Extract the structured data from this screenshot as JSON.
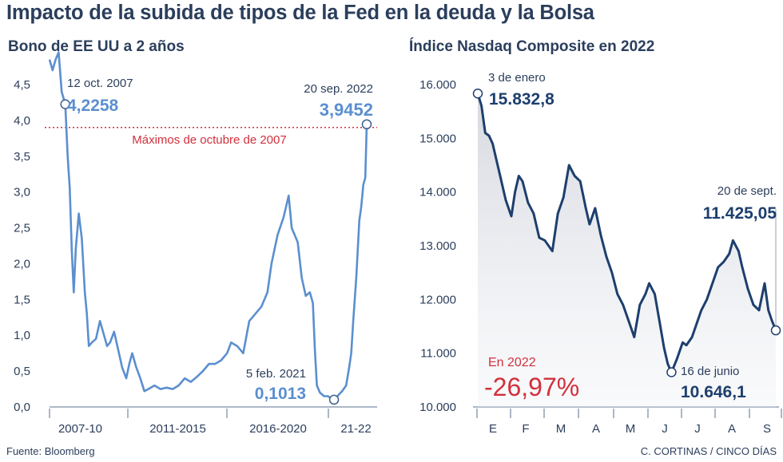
{
  "title": "Impacto de la subida de tipos de la Fed en la deuda y la Bolsa",
  "source": "Fuente: Bloomberg",
  "credit": "C. CORTINAS / CINCO DÍAS",
  "colors": {
    "bond_line": "#5b8fcf",
    "nasdaq_line": "#1d3f6e",
    "reference": "#d2303c",
    "axis_text": "#2b3e5c"
  },
  "chart_data": [
    {
      "type": "line",
      "title": "Bono de EE UU a 2 años",
      "xlabel": "",
      "ylabel": "",
      "ylim": [
        0,
        4.5
      ],
      "yticks": [
        "4,5",
        "4,0",
        "3,5",
        "3,0",
        "2,5",
        "2,0",
        "1,5",
        "1,0",
        "0,5",
        "0,0"
      ],
      "xtick_labels": [
        "2007-10",
        "2011-2015",
        "2016-2020",
        "21-22"
      ],
      "grid": false,
      "series": [
        {
          "values": [
            [
              2007.0,
              4.85
            ],
            [
              2007.15,
              4.7
            ],
            [
              2007.3,
              4.85
            ],
            [
              2007.45,
              4.95
            ],
            [
              2007.6,
              4.4
            ],
            [
              2007.78,
              4.2258
            ],
            [
              2007.9,
              3.5
            ],
            [
              2008.0,
              3.05
            ],
            [
              2008.1,
              2.2
            ],
            [
              2008.2,
              1.6
            ],
            [
              2008.3,
              2.2
            ],
            [
              2008.45,
              2.7
            ],
            [
              2008.6,
              2.35
            ],
            [
              2008.75,
              1.6
            ],
            [
              2008.85,
              1.3
            ],
            [
              2008.95,
              0.85
            ],
            [
              2009.1,
              0.9
            ],
            [
              2009.3,
              0.95
            ],
            [
              2009.5,
              1.2
            ],
            [
              2009.7,
              1.0
            ],
            [
              2009.85,
              0.85
            ],
            [
              2010.0,
              0.9
            ],
            [
              2010.2,
              1.05
            ],
            [
              2010.4,
              0.8
            ],
            [
              2010.6,
              0.55
            ],
            [
              2010.8,
              0.4
            ],
            [
              2010.95,
              0.6
            ],
            [
              2011.1,
              0.75
            ],
            [
              2011.3,
              0.55
            ],
            [
              2011.5,
              0.4
            ],
            [
              2011.7,
              0.22
            ],
            [
              2011.9,
              0.25
            ],
            [
              2012.2,
              0.3
            ],
            [
              2012.5,
              0.25
            ],
            [
              2012.8,
              0.27
            ],
            [
              2013.1,
              0.25
            ],
            [
              2013.4,
              0.3
            ],
            [
              2013.7,
              0.4
            ],
            [
              2014.0,
              0.35
            ],
            [
              2014.3,
              0.42
            ],
            [
              2014.6,
              0.5
            ],
            [
              2014.9,
              0.6
            ],
            [
              2015.2,
              0.6
            ],
            [
              2015.5,
              0.65
            ],
            [
              2015.8,
              0.75
            ],
            [
              2016.0,
              0.9
            ],
            [
              2016.3,
              0.85
            ],
            [
              2016.6,
              0.75
            ],
            [
              2016.9,
              1.2
            ],
            [
              2017.2,
              1.3
            ],
            [
              2017.5,
              1.4
            ],
            [
              2017.8,
              1.6
            ],
            [
              2018.0,
              2.0
            ],
            [
              2018.3,
              2.4
            ],
            [
              2018.6,
              2.65
            ],
            [
              2018.85,
              2.95
            ],
            [
              2019.0,
              2.5
            ],
            [
              2019.3,
              2.3
            ],
            [
              2019.5,
              1.8
            ],
            [
              2019.7,
              1.55
            ],
            [
              2019.9,
              1.6
            ],
            [
              2020.05,
              1.45
            ],
            [
              2020.15,
              0.8
            ],
            [
              2020.25,
              0.3
            ],
            [
              2020.4,
              0.2
            ],
            [
              2020.6,
              0.15
            ],
            [
              2020.8,
              0.15
            ],
            [
              2020.95,
              0.12
            ],
            [
              2021.1,
              0.1013
            ],
            [
              2021.3,
              0.16
            ],
            [
              2021.5,
              0.22
            ],
            [
              2021.7,
              0.3
            ],
            [
              2021.85,
              0.55
            ],
            [
              2021.95,
              0.75
            ],
            [
              2022.05,
              1.2
            ],
            [
              2022.2,
              1.8
            ],
            [
              2022.35,
              2.6
            ],
            [
              2022.45,
              2.8
            ],
            [
              2022.55,
              3.1
            ],
            [
              2022.65,
              3.2
            ],
            [
              2022.72,
              3.9452
            ]
          ]
        }
      ],
      "reference_line": {
        "value": 3.9452,
        "label": "Máximos de octubre de 2007"
      },
      "annotations": [
        {
          "date": "12 oct. 2007",
          "value": "4,2258"
        },
        {
          "date": "20 sep. 2022",
          "value": "3,9452"
        },
        {
          "date": "5 feb. 2021",
          "value": "0,1013"
        }
      ]
    },
    {
      "type": "area",
      "title": "Índice Nasdaq Composite en 2022",
      "xlabel": "",
      "ylabel": "",
      "ylim": [
        10000,
        16000
      ],
      "yticks": [
        "16.000",
        "15.000",
        "14.000",
        "13.000",
        "12.000",
        "11.000",
        "10.000"
      ],
      "categories": [
        "E",
        "F",
        "M",
        "A",
        "M",
        "J",
        "J",
        "A",
        "S"
      ],
      "grid": false,
      "series": [
        {
          "values": [
            [
              0.0,
              15832.8
            ],
            [
              0.1,
              15600
            ],
            [
              0.2,
              15100
            ],
            [
              0.3,
              15050
            ],
            [
              0.4,
              14900
            ],
            [
              0.5,
              14600
            ],
            [
              0.6,
              14300
            ],
            [
              0.75,
              13850
            ],
            [
              0.9,
              13550
            ],
            [
              1.0,
              14000
            ],
            [
              1.1,
              14300
            ],
            [
              1.2,
              14200
            ],
            [
              1.35,
              13800
            ],
            [
              1.5,
              13600
            ],
            [
              1.65,
              13150
            ],
            [
              1.8,
              13100
            ],
            [
              2.0,
              12900
            ],
            [
              2.15,
              13600
            ],
            [
              2.3,
              13900
            ],
            [
              2.45,
              14500
            ],
            [
              2.6,
              14300
            ],
            [
              2.75,
              14200
            ],
            [
              2.9,
              13700
            ],
            [
              3.0,
              13400
            ],
            [
              3.15,
              13700
            ],
            [
              3.3,
              13200
            ],
            [
              3.45,
              12800
            ],
            [
              3.6,
              12500
            ],
            [
              3.75,
              12100
            ],
            [
              3.9,
              11900
            ],
            [
              4.0,
              11700
            ],
            [
              4.1,
              11500
            ],
            [
              4.2,
              11300
            ],
            [
              4.35,
              11900
            ],
            [
              4.5,
              12100
            ],
            [
              4.6,
              12300
            ],
            [
              4.75,
              12100
            ],
            [
              4.9,
              11500
            ],
            [
              5.0,
              11100
            ],
            [
              5.1,
              10800
            ],
            [
              5.2,
              10646.1
            ],
            [
              5.35,
              10900
            ],
            [
              5.5,
              11200
            ],
            [
              5.6,
              11150
            ],
            [
              5.75,
              11300
            ],
            [
              5.9,
              11600
            ],
            [
              6.0,
              11800
            ],
            [
              6.15,
              12000
            ],
            [
              6.3,
              12300
            ],
            [
              6.45,
              12600
            ],
            [
              6.6,
              12700
            ],
            [
              6.75,
              12850
            ],
            [
              6.85,
              13100
            ],
            [
              7.0,
              12900
            ],
            [
              7.1,
              12600
            ],
            [
              7.25,
              12200
            ],
            [
              7.4,
              11900
            ],
            [
              7.55,
              11800
            ],
            [
              7.7,
              12300
            ],
            [
              7.8,
              11800
            ],
            [
              7.9,
              11600
            ],
            [
              8.0,
              11425.05
            ]
          ]
        }
      ],
      "annotations": [
        {
          "date": "3 de enero",
          "value": "15.832,8"
        },
        {
          "date": "16 de junio",
          "value": "10.646,1"
        },
        {
          "date": "20 de sept.",
          "value": "11.425,05"
        }
      ],
      "change_label": "En 2022",
      "change_value": "-26,97%"
    }
  ]
}
